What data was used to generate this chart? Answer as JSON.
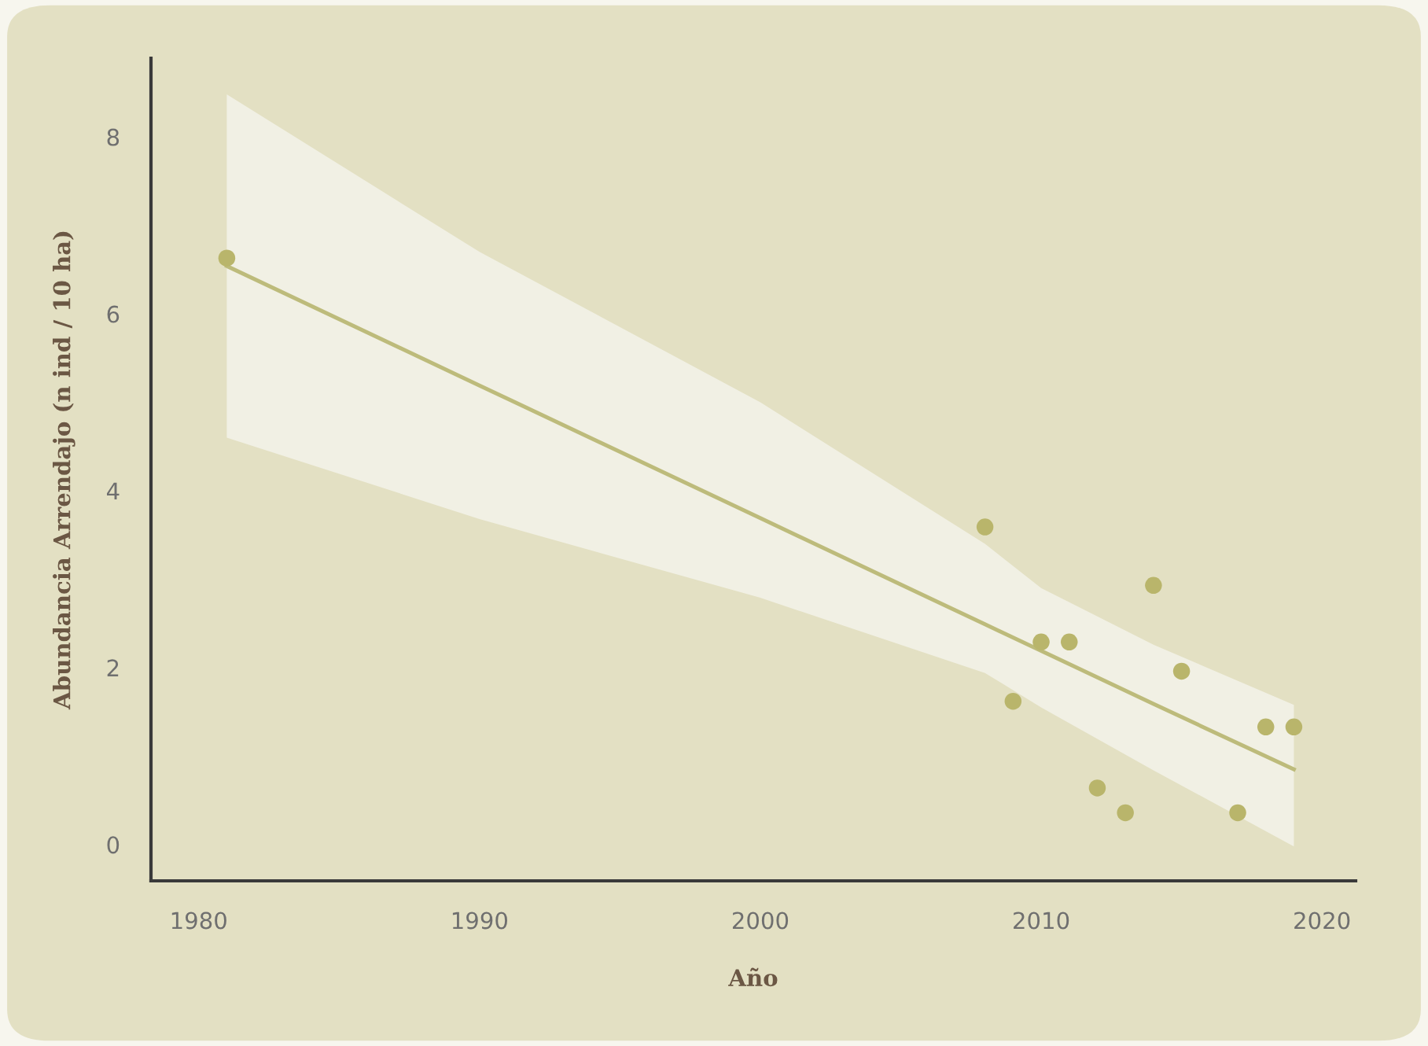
{
  "chart_data": {
    "type": "scatter",
    "xlabel": "Año",
    "ylabel": "Abundancia Arrendajo (n ind / 10 ha)",
    "x": [
      1981,
      2008,
      2009,
      2010,
      2011,
      2012,
      2013,
      2014,
      2015,
      2017,
      2018,
      2019
    ],
    "series": [
      {
        "marker": "circle",
        "color": "#b9b56b",
        "values": [
          6.63,
          3.59,
          1.62,
          2.29,
          2.29,
          0.64,
          0.36,
          2.93,
          1.96,
          0.36,
          1.33,
          1.33
        ]
      },
      {
        "type": "line",
        "color": "#bdbb7b",
        "x": [
          1981,
          1990,
          2000,
          2008,
          2010,
          2014,
          2019
        ],
        "values": [
          6.54,
          5.19,
          3.69,
          2.49,
          2.19,
          1.59,
          0.85
        ],
        "lower": [
          4.6,
          3.68,
          2.79,
          1.94,
          1.55,
          0.84,
          -0.02
        ],
        "upper": [
          8.48,
          6.7,
          5.0,
          3.4,
          2.9,
          2.26,
          1.58
        ]
      }
    ],
    "xlim": [
      1978.3,
      2021.2
    ],
    "ylim": [
      -0.41,
      8.89
    ],
    "xticks": [
      1980,
      1990,
      2000,
      2010,
      2020
    ],
    "yticks": [
      0,
      2,
      4,
      6,
      8
    ],
    "grid": false,
    "legend": false
  }
}
